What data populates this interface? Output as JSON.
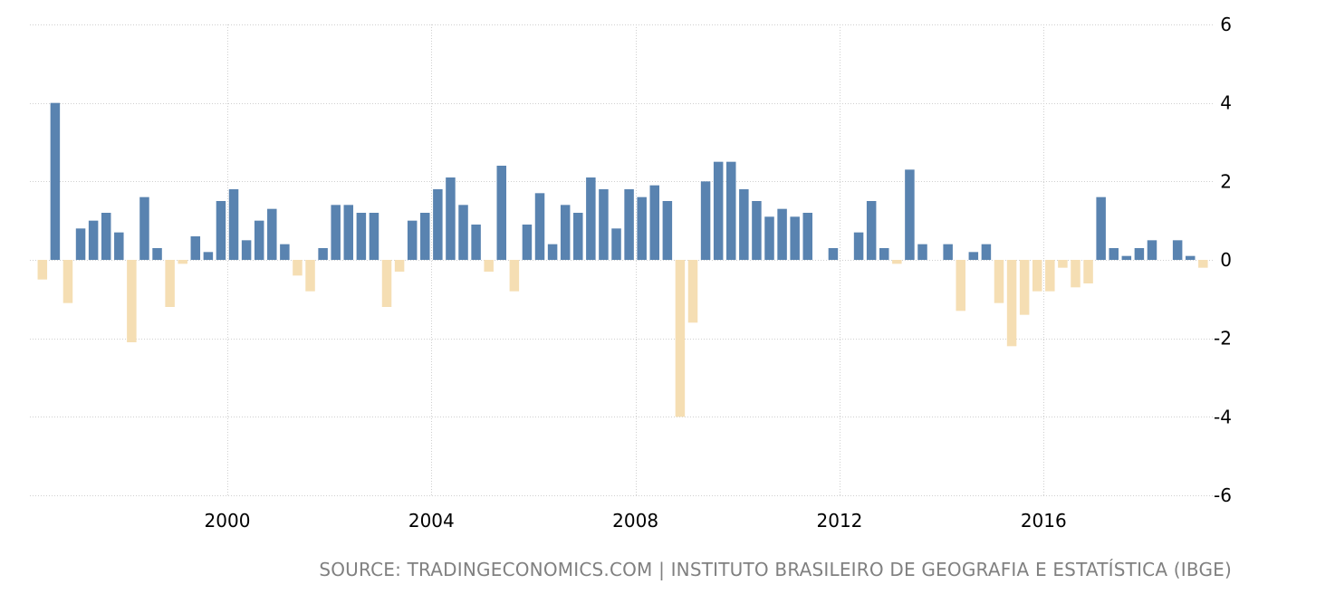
{
  "chart_data": {
    "type": "bar",
    "title": "",
    "xlabel": "",
    "ylabel": "",
    "x_start": "1996-Q2",
    "frequency": "quarterly",
    "values": [
      -0.5,
      4.0,
      -1.1,
      0.8,
      1.0,
      1.2,
      0.7,
      -2.1,
      1.6,
      0.3,
      -1.2,
      -0.1,
      0.6,
      0.2,
      1.5,
      1.8,
      0.5,
      1.0,
      1.3,
      0.4,
      -0.4,
      -0.8,
      0.3,
      1.4,
      1.4,
      1.2,
      1.2,
      -1.2,
      -0.3,
      1.0,
      1.2,
      1.8,
      2.1,
      1.4,
      0.9,
      -0.3,
      2.4,
      -0.8,
      0.9,
      1.7,
      0.4,
      1.4,
      1.2,
      2.1,
      1.8,
      0.8,
      1.8,
      1.6,
      1.9,
      1.5,
      -4.0,
      -1.6,
      2.0,
      2.5,
      2.5,
      1.8,
      1.5,
      1.1,
      1.3,
      1.1,
      1.2,
      0.0,
      0.3,
      0.0,
      0.7,
      1.5,
      0.3,
      -0.1,
      2.3,
      0.4,
      0.0,
      0.4,
      -1.3,
      0.2,
      0.4,
      -1.1,
      -2.2,
      -1.4,
      -0.8,
      -0.8,
      -0.2,
      -0.7,
      -0.6,
      1.6,
      0.3,
      0.1,
      0.3,
      0.5,
      0.0,
      0.5,
      0.1,
      -0.2
    ],
    "x_ticks": [
      "2000",
      "2004",
      "2008",
      "2012",
      "2016"
    ],
    "y_ticks": [
      "6",
      "4",
      "2",
      "0",
      "-2",
      "-4",
      "-6"
    ],
    "ylim": [
      -6,
      6
    ],
    "grid": true,
    "legend": "none",
    "colors": {
      "positive": "#5983b0",
      "negative": "#f5deb3",
      "grid": "#cfcfcf"
    }
  },
  "source_text": "SOURCE: TRADINGECONOMICS.COM | INSTITUTO BRASILEIRO DE GEOGRAFIA E ESTATÍSTICA (IBGE)"
}
